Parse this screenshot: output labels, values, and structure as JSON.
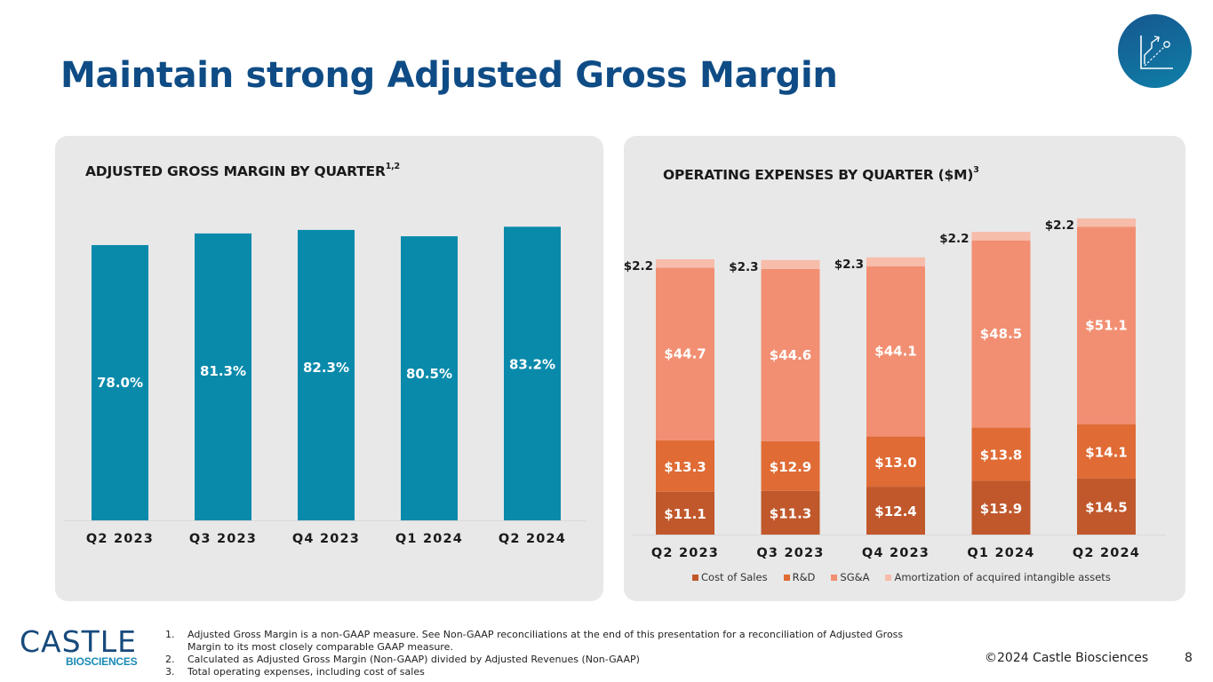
{
  "page": {
    "title": "Maintain strong Adjusted Gross Margin",
    "badge_icon": "growth-chart-icon",
    "copyright": "©2024 Castle Biosciences",
    "page_number": "8"
  },
  "logo": {
    "name": "CASTLE",
    "subtitle": "BIOSCIENCES"
  },
  "footnotes": [
    {
      "num": "1.",
      "text": "Adjusted Gross Margin is a non-GAAP measure. See Non-GAAP reconciliations at the end of this presentation for a reconciliation of Adjusted Gross Margin to its most closely comparable GAAP measure."
    },
    {
      "num": "2.",
      "text": "Calculated as Adjusted Gross Margin (Non-GAAP) divided by Adjusted Revenues (Non-GAAP)"
    },
    {
      "num": "3.",
      "text": "Total operating expenses, including cost of sales"
    }
  ],
  "colors": {
    "title": "#0f4c86",
    "margin_bar": "#0a8aab",
    "cost_of_sales": "#c0582c",
    "rd": "#e06b35",
    "sga": "#f28f72",
    "amortization": "#f7bcaa",
    "panel_bg": "#e8e8e8"
  },
  "chart_data": [
    {
      "type": "bar",
      "title": "ADJUSTED GROSS MARGIN BY QUARTER",
      "title_superscript": "1,2",
      "categories": [
        "Q2 2023",
        "Q3 2023",
        "Q4 2023",
        "Q1 2024",
        "Q2 2024"
      ],
      "values": [
        78.0,
        81.3,
        82.3,
        80.5,
        83.2
      ],
      "data_labels": [
        "78.0%",
        "81.3%",
        "82.3%",
        "80.5%",
        "83.2%"
      ],
      "xlabel": "",
      "ylabel": "",
      "ylim": [
        0,
        100
      ],
      "grid": false,
      "legend": "none"
    },
    {
      "type": "bar",
      "stacked": true,
      "title": "OPERATING EXPENSES BY QUARTER ($M)",
      "title_superscript": "3",
      "categories": [
        "Q2 2023",
        "Q3 2023",
        "Q4 2023",
        "Q1 2024",
        "Q2 2024"
      ],
      "series": [
        {
          "name": "Cost of Sales",
          "values": [
            11.1,
            11.3,
            12.4,
            13.9,
            14.5
          ],
          "labels": [
            "$11.1",
            "$11.3",
            "$12.4",
            "$13.9",
            "$14.5"
          ]
        },
        {
          "name": "R&D",
          "values": [
            13.3,
            12.9,
            13.0,
            13.8,
            14.1
          ],
          "labels": [
            "$13.3",
            "$12.9",
            "$13.0",
            "$13.8",
            "$14.1"
          ]
        },
        {
          "name": "SG&A",
          "values": [
            44.7,
            44.6,
            44.1,
            48.5,
            51.1
          ],
          "labels": [
            "$44.7",
            "$44.6",
            "$44.1",
            "$48.5",
            "$51.1"
          ]
        },
        {
          "name": "Amortization of acquired intangible assets",
          "values": [
            2.2,
            2.3,
            2.3,
            2.2,
            2.2
          ],
          "labels": [
            "$2.2",
            "$2.3",
            "$2.3",
            "$2.2",
            "$2.2"
          ]
        }
      ],
      "xlabel": "",
      "ylabel": "",
      "ylim": [
        0,
        90
      ],
      "grid": false,
      "legend": "bottom"
    }
  ]
}
